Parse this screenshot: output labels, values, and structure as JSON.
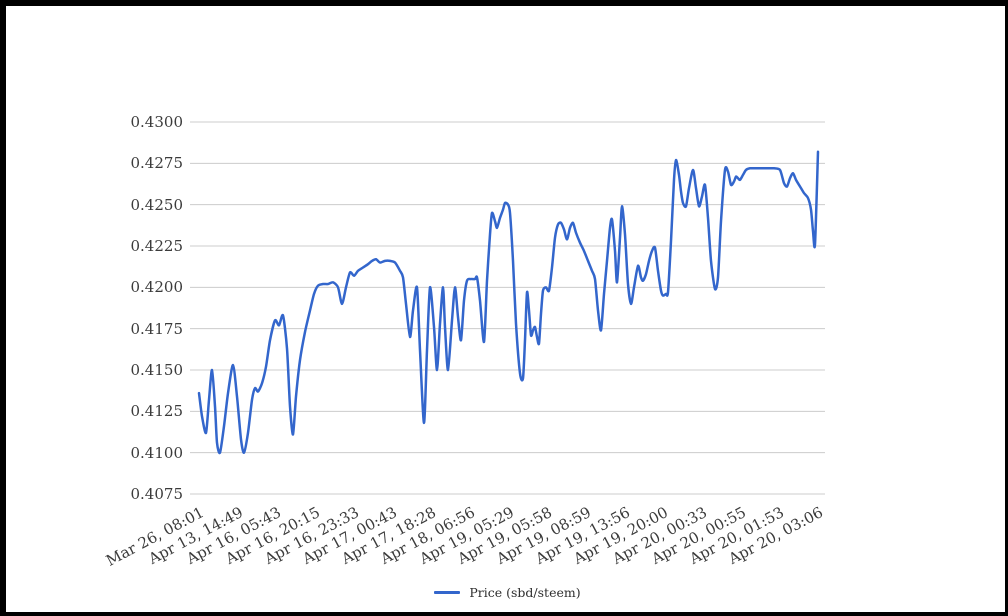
{
  "legend": {
    "label": "Price (sbd/steem)"
  },
  "colors": {
    "line": "#3366cc",
    "gridline": "#cccccc",
    "axis_text": "#3b3b3b",
    "frame": "#000000",
    "background": "#ffffff"
  },
  "chart_data": {
    "type": "line",
    "title": "",
    "legend_position": "bottom",
    "grid": true,
    "series": [
      {
        "name": "Price (sbd/steem)",
        "color": "#3366cc"
      }
    ],
    "x_axis": {
      "labels": [
        "Mar 26, 08:01",
        "Apr 13, 14:49",
        "Apr 16, 05:43",
        "Apr 16, 20:15",
        "Apr 16, 23:33",
        "Apr 17, 00:43",
        "Apr 17, 18:28",
        "Apr 18, 06:56",
        "Apr 19, 05:29",
        "Apr 19, 05:58",
        "Apr 19, 08:59",
        "Apr 19, 13:56",
        "Apr 19, 20:00",
        "Apr 20, 00:33",
        "Apr 20, 00:55",
        "Apr 20, 01:53",
        "Apr 20, 03:06"
      ],
      "label_rotation_deg": -28
    },
    "y_axis": {
      "min": 0.4075,
      "max": 0.43,
      "ticks": [
        0.43,
        0.4275,
        0.425,
        0.4225,
        0.42,
        0.4175,
        0.415,
        0.4125,
        0.41,
        0.4075
      ],
      "decimals": 4
    },
    "points": [
      [
        199,
        0.4136
      ],
      [
        202,
        0.4122
      ],
      [
        206,
        0.4112
      ],
      [
        209,
        0.4132
      ],
      [
        212,
        0.415
      ],
      [
        215,
        0.4128
      ],
      [
        217,
        0.4106
      ],
      [
        220,
        0.41
      ],
      [
        224,
        0.4116
      ],
      [
        228,
        0.4136
      ],
      [
        233,
        0.4153
      ],
      [
        237,
        0.4134
      ],
      [
        241,
        0.4108
      ],
      [
        244,
        0.41
      ],
      [
        248,
        0.4112
      ],
      [
        252,
        0.4132
      ],
      [
        255,
        0.4139
      ],
      [
        258,
        0.4137
      ],
      [
        262,
        0.4142
      ],
      [
        266,
        0.4152
      ],
      [
        270,
        0.4168
      ],
      [
        275,
        0.418
      ],
      [
        279,
        0.4177
      ],
      [
        283,
        0.4183
      ],
      [
        287,
        0.4163
      ],
      [
        290,
        0.4128
      ],
      [
        293,
        0.4111
      ],
      [
        296,
        0.4134
      ],
      [
        300,
        0.4156
      ],
      [
        305,
        0.4173
      ],
      [
        310,
        0.4186
      ],
      [
        314,
        0.4196
      ],
      [
        318,
        0.4201
      ],
      [
        323,
        0.4202
      ],
      [
        328,
        0.4202
      ],
      [
        333,
        0.4203
      ],
      [
        338,
        0.42
      ],
      [
        342,
        0.419
      ],
      [
        346,
        0.42
      ],
      [
        350,
        0.4209
      ],
      [
        354,
        0.4207
      ],
      [
        358,
        0.421
      ],
      [
        363,
        0.4212
      ],
      [
        368,
        0.4214
      ],
      [
        372,
        0.4216
      ],
      [
        376,
        0.4217
      ],
      [
        380,
        0.4215
      ],
      [
        385,
        0.4216
      ],
      [
        390,
        0.4216
      ],
      [
        395,
        0.4215
      ],
      [
        400,
        0.421
      ],
      [
        403,
        0.4206
      ],
      [
        406,
        0.419
      ],
      [
        410,
        0.417
      ],
      [
        413,
        0.4186
      ],
      [
        417,
        0.42
      ],
      [
        420,
        0.4162
      ],
      [
        424,
        0.4118
      ],
      [
        427,
        0.4162
      ],
      [
        430,
        0.42
      ],
      [
        434,
        0.4176
      ],
      [
        437,
        0.415
      ],
      [
        440,
        0.4178
      ],
      [
        443,
        0.42
      ],
      [
        445,
        0.4176
      ],
      [
        448,
        0.415
      ],
      [
        452,
        0.418
      ],
      [
        455,
        0.42
      ],
      [
        458,
        0.4182
      ],
      [
        461,
        0.4168
      ],
      [
        464,
        0.4192
      ],
      [
        467,
        0.4204
      ],
      [
        471,
        0.4205
      ],
      [
        475,
        0.4205
      ],
      [
        477,
        0.4206
      ],
      [
        480,
        0.4192
      ],
      [
        484,
        0.4167
      ],
      [
        487,
        0.4204
      ],
      [
        490,
        0.4232
      ],
      [
        492,
        0.4245
      ],
      [
        495,
        0.424
      ],
      [
        497,
        0.4236
      ],
      [
        500,
        0.4242
      ],
      [
        503,
        0.4247
      ],
      [
        505,
        0.4251
      ],
      [
        508,
        0.425
      ],
      [
        510,
        0.4245
      ],
      [
        513,
        0.4216
      ],
      [
        516,
        0.4178
      ],
      [
        520,
        0.4148
      ],
      [
        523,
        0.4145
      ],
      [
        525,
        0.4168
      ],
      [
        527,
        0.4197
      ],
      [
        529,
        0.4186
      ],
      [
        531,
        0.4171
      ],
      [
        533,
        0.4174
      ],
      [
        535,
        0.4176
      ],
      [
        537,
        0.417
      ],
      [
        539,
        0.4166
      ],
      [
        541,
        0.4184
      ],
      [
        543,
        0.4198
      ],
      [
        546,
        0.42
      ],
      [
        549,
        0.4198
      ],
      [
        552,
        0.4212
      ],
      [
        555,
        0.423
      ],
      [
        558,
        0.4238
      ],
      [
        561,
        0.4239
      ],
      [
        564,
        0.4235
      ],
      [
        567,
        0.4229
      ],
      [
        570,
        0.4236
      ],
      [
        573,
        0.4239
      ],
      [
        576,
        0.4233
      ],
      [
        580,
        0.4227
      ],
      [
        584,
        0.4222
      ],
      [
        588,
        0.4216
      ],
      [
        592,
        0.421
      ],
      [
        595,
        0.4205
      ],
      [
        598,
        0.4186
      ],
      [
        601,
        0.4174
      ],
      [
        604,
        0.4196
      ],
      [
        607,
        0.4216
      ],
      [
        610,
        0.4236
      ],
      [
        612,
        0.4241
      ],
      [
        615,
        0.4222
      ],
      [
        617,
        0.4203
      ],
      [
        620,
        0.423
      ],
      [
        622,
        0.4249
      ],
      [
        625,
        0.4232
      ],
      [
        628,
        0.4202
      ],
      [
        631,
        0.419
      ],
      [
        634,
        0.42
      ],
      [
        638,
        0.4213
      ],
      [
        641,
        0.4206
      ],
      [
        643,
        0.4204
      ],
      [
        646,
        0.4208
      ],
      [
        649,
        0.4216
      ],
      [
        652,
        0.4222
      ],
      [
        655,
        0.4224
      ],
      [
        658,
        0.421
      ],
      [
        661,
        0.4198
      ],
      [
        663,
        0.4195
      ],
      [
        666,
        0.4196
      ],
      [
        668,
        0.4197
      ],
      [
        671,
        0.4228
      ],
      [
        674,
        0.4265
      ],
      [
        676,
        0.4277
      ],
      [
        679,
        0.4268
      ],
      [
        681,
        0.4258
      ],
      [
        683,
        0.4251
      ],
      [
        686,
        0.4249
      ],
      [
        689,
        0.426
      ],
      [
        693,
        0.4271
      ],
      [
        696,
        0.426
      ],
      [
        699,
        0.4249
      ],
      [
        702,
        0.4255
      ],
      [
        705,
        0.4262
      ],
      [
        708,
        0.4242
      ],
      [
        711,
        0.4216
      ],
      [
        715,
        0.4199
      ],
      [
        718,
        0.4206
      ],
      [
        721,
        0.424
      ],
      [
        725,
        0.4271
      ],
      [
        728,
        0.427
      ],
      [
        731,
        0.4262
      ],
      [
        734,
        0.4264
      ],
      [
        736,
        0.4267
      ],
      [
        738,
        0.4266
      ],
      [
        740,
        0.4265
      ],
      [
        743,
        0.4268
      ],
      [
        746,
        0.4271
      ],
      [
        750,
        0.4272
      ],
      [
        756,
        0.4272
      ],
      [
        762,
        0.4272
      ],
      [
        768,
        0.4272
      ],
      [
        774,
        0.4272
      ],
      [
        780,
        0.4271
      ],
      [
        784,
        0.4263
      ],
      [
        787,
        0.4261
      ],
      [
        790,
        0.4266
      ],
      [
        793,
        0.4269
      ],
      [
        796,
        0.4265
      ],
      [
        800,
        0.4261
      ],
      [
        804,
        0.4257
      ],
      [
        808,
        0.4254
      ],
      [
        811,
        0.4247
      ],
      [
        813,
        0.4234
      ],
      [
        815,
        0.4226
      ],
      [
        818,
        0.4282
      ]
    ]
  }
}
